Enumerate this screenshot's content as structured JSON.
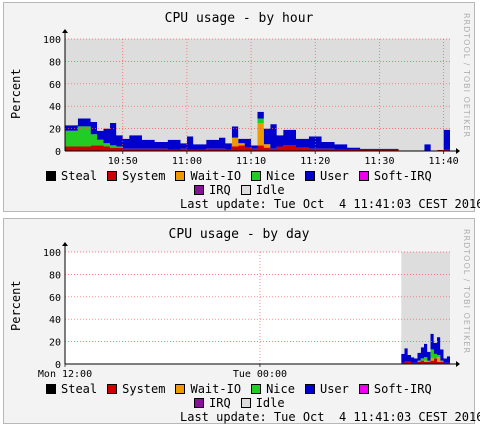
{
  "chart_data": [
    {
      "type": "area",
      "title": "CPU usage - by hour",
      "ylabel": "Percent",
      "vendor_text": "RRDTOOL / TOBI OETIKER",
      "ylim": [
        0,
        100
      ],
      "yticks": [
        0,
        20,
        40,
        60,
        80,
        100
      ],
      "xticks": [
        "10:50",
        "11:00",
        "11:10",
        "11:20",
        "11:30",
        "11:40"
      ],
      "xrange_minutes": [
        -60,
        0
      ],
      "xtick_minutes": [
        -51,
        -41,
        -31,
        -21,
        -11,
        -1
      ],
      "grid": true,
      "x": [
        -60,
        -58,
        -56,
        -55,
        -54,
        -53,
        -52,
        -51,
        -50,
        -48,
        -46,
        -44,
        -42,
        -41,
        -40,
        -38,
        -36,
        -35,
        -34,
        -33,
        -32,
        -31,
        -30,
        -29,
        -28,
        -27,
        -26,
        -24,
        -22,
        -20,
        -18,
        -16,
        -14,
        -12,
        -10,
        -8,
        -6,
        -5,
        -4,
        -3,
        -2,
        -1,
        0
      ],
      "series": [
        {
          "name": "Steal",
          "color": "#000000",
          "values": [
            0,
            0,
            0,
            0,
            0,
            0,
            0,
            0,
            0,
            0,
            0,
            0,
            0,
            0,
            0,
            0,
            0,
            0,
            0,
            0,
            0,
            0,
            0,
            0,
            0,
            0,
            0,
            0,
            0,
            0,
            0,
            0,
            0,
            0,
            0,
            0,
            0,
            0,
            0,
            0,
            0,
            0,
            0
          ]
        },
        {
          "name": "System",
          "color": "#cc0000",
          "values": [
            4,
            4,
            5,
            5,
            4,
            3,
            3,
            2,
            2,
            2,
            2,
            1,
            2,
            1,
            1,
            2,
            2,
            1,
            4,
            5,
            3,
            2,
            5,
            3,
            2,
            4,
            5,
            3,
            2,
            2,
            1,
            1,
            1,
            1,
            1,
            0,
            0,
            0,
            0,
            0,
            1,
            1,
            0
          ]
        },
        {
          "name": "Wait-IO",
          "color": "#ee9900",
          "values": [
            0,
            0,
            0,
            0,
            0,
            0,
            0,
            0,
            0,
            0,
            0,
            0,
            0,
            0,
            0,
            0,
            0,
            0,
            8,
            2,
            0,
            0,
            20,
            3,
            0,
            0,
            0,
            0,
            0,
            0,
            0,
            0,
            0,
            0,
            0,
            0,
            0,
            0,
            0,
            0,
            0,
            0,
            0
          ]
        },
        {
          "name": "Nice",
          "color": "#22cc22",
          "values": [
            14,
            18,
            10,
            5,
            3,
            2,
            1,
            0,
            0,
            0,
            0,
            0,
            0,
            0,
            0,
            0,
            0,
            0,
            0,
            0,
            0,
            0,
            4,
            0,
            0,
            0,
            0,
            0,
            0,
            0,
            0,
            0,
            0,
            0,
            0,
            0,
            0,
            0,
            0,
            0,
            0,
            0,
            0
          ]
        },
        {
          "name": "User",
          "color": "#0000cc",
          "values": [
            5,
            7,
            11,
            8,
            13,
            20,
            10,
            9,
            12,
            8,
            6,
            9,
            5,
            12,
            5,
            8,
            10,
            6,
            10,
            4,
            8,
            3,
            6,
            14,
            22,
            10,
            14,
            8,
            11,
            6,
            5,
            2,
            1,
            1,
            1,
            0,
            0,
            0,
            6,
            0,
            0,
            18,
            0
          ]
        },
        {
          "name": "Soft-IRQ",
          "color": "#ee00ee",
          "values": [
            0,
            0,
            0,
            0,
            0,
            0,
            0,
            0,
            0,
            0,
            0,
            0,
            0,
            0,
            0,
            0,
            0,
            0,
            0,
            0,
            0,
            0,
            0,
            0,
            0,
            0,
            0,
            0,
            0,
            0,
            0,
            0,
            0,
            0,
            0,
            0,
            0,
            0,
            0,
            0,
            0,
            0,
            0
          ]
        },
        {
          "name": "IRQ",
          "color": "#881199",
          "values": [
            0,
            0,
            0,
            0,
            0,
            0,
            0,
            0,
            0,
            0,
            0,
            0,
            0,
            0,
            0,
            0,
            0,
            0,
            0,
            0,
            0,
            0,
            0,
            0,
            0,
            0,
            0,
            0,
            0,
            0,
            0,
            0,
            0,
            0,
            0,
            0,
            0,
            0,
            0,
            0,
            0,
            0,
            0
          ]
        },
        {
          "name": "Idle",
          "color": "#dddddd",
          "values": [
            77,
            71,
            74,
            82,
            80,
            75,
            86,
            89,
            86,
            90,
            92,
            90,
            93,
            87,
            94,
            90,
            88,
            93,
            78,
            89,
            89,
            95,
            65,
            80,
            76,
            86,
            81,
            89,
            87,
            92,
            94,
            97,
            98,
            98,
            98,
            100,
            100,
            100,
            94,
            100,
            99,
            81,
            100
          ]
        }
      ],
      "last_update": "Last update: Tue Oct  4 11:41:03 CEST 2016"
    },
    {
      "type": "area",
      "title": "CPU usage - by day",
      "ylabel": "Percent",
      "vendor_text": "RRDTOOL / TOBI OETIKER",
      "ylim": [
        0,
        100
      ],
      "yticks": [
        0,
        20,
        40,
        60,
        80,
        100
      ],
      "xticks": [
        "Mon 12:00",
        "Tue 00:00"
      ],
      "xrange_hours": [
        -23.7,
        0
      ],
      "xtick_hours": [
        -23.7,
        -11.7
      ],
      "grid": true,
      "x": [
        -3.0,
        -2.8,
        -2.6,
        -2.4,
        -2.2,
        -2.0,
        -1.8,
        -1.6,
        -1.4,
        -1.2,
        -1.0,
        -0.8,
        -0.6,
        -0.4,
        -0.2,
        0
      ],
      "series": [
        {
          "name": "Steal",
          "color": "#000000",
          "values": [
            0,
            0,
            0,
            0,
            0,
            0,
            0,
            0,
            0,
            0,
            0,
            0,
            0,
            0,
            0,
            0
          ]
        },
        {
          "name": "System",
          "color": "#cc0000",
          "values": [
            1,
            2,
            2,
            1,
            1,
            2,
            3,
            2,
            2,
            3,
            5,
            2,
            2,
            1,
            1,
            0
          ]
        },
        {
          "name": "Wait-IO",
          "color": "#ee9900",
          "values": [
            0,
            0,
            0,
            0,
            0,
            0,
            0,
            1,
            0,
            2,
            0,
            4,
            0,
            0,
            0,
            0
          ]
        },
        {
          "name": "Nice",
          "color": "#22cc22",
          "values": [
            0,
            0,
            0,
            0,
            0,
            1,
            2,
            3,
            1,
            8,
            4,
            2,
            1,
            0,
            0,
            0
          ]
        },
        {
          "name": "User",
          "color": "#0000cc",
          "values": [
            8,
            12,
            6,
            5,
            4,
            7,
            10,
            12,
            8,
            14,
            10,
            16,
            10,
            4,
            6,
            0
          ]
        },
        {
          "name": "Soft-IRQ",
          "color": "#ee00ee",
          "values": [
            0,
            0,
            0,
            0,
            0,
            0,
            0,
            0,
            0,
            0,
            0,
            0,
            0,
            0,
            0,
            0
          ]
        },
        {
          "name": "IRQ",
          "color": "#881199",
          "values": [
            0,
            0,
            0,
            0,
            0,
            0,
            0,
            0,
            0,
            0,
            0,
            0,
            0,
            0,
            0,
            0
          ]
        },
        {
          "name": "Idle",
          "color": "#dddddd",
          "values": [
            91,
            86,
            92,
            94,
            95,
            90,
            85,
            82,
            89,
            73,
            81,
            76,
            87,
            95,
            93,
            100
          ]
        }
      ],
      "last_update": "Last update: Tue Oct  4 11:41:03 CEST 2016"
    }
  ],
  "legend": [
    {
      "name": "Steal",
      "color": "#000000"
    },
    {
      "name": "System",
      "color": "#cc0000"
    },
    {
      "name": "Wait-IO",
      "color": "#ee9900"
    },
    {
      "name": "Nice",
      "color": "#22cc22"
    },
    {
      "name": "User",
      "color": "#0000cc"
    },
    {
      "name": "Soft-IRQ",
      "color": "#ee00ee"
    },
    {
      "name": "IRQ",
      "color": "#881199"
    },
    {
      "name": "Idle",
      "color": "#dddddd"
    }
  ]
}
